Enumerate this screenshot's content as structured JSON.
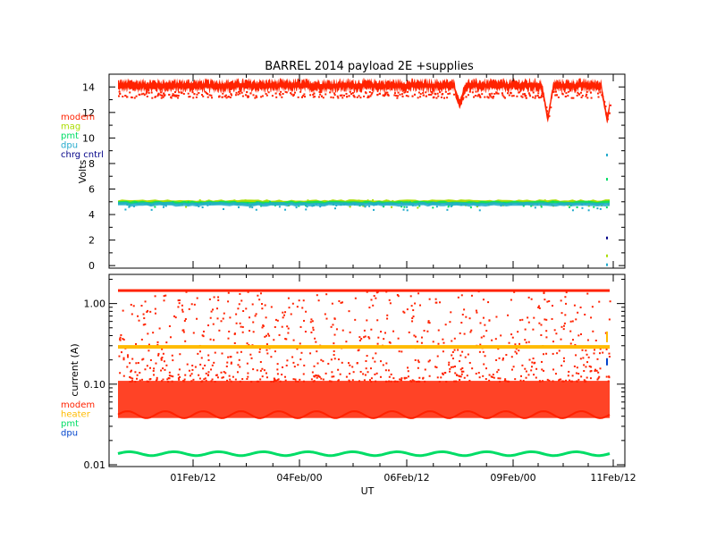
{
  "colors": {
    "modem": "#ff2200",
    "mag": "#aadd00",
    "pmt": "#00dd66",
    "dpu": "#22aacc",
    "chrg_cntrl": "#000088",
    "heater": "#ffbb00",
    "dpu_lower": "#0044cc"
  },
  "chart_data": [
    {
      "type": "scatter",
      "title": "BARREL 2014 payload 2E +supplies",
      "ylabel": "Volts",
      "ylim": [
        -0.2,
        15
      ],
      "yticks": [
        {
          "label": "0",
          "value": 0
        },
        {
          "label": "2",
          "value": 2
        },
        {
          "label": "4",
          "value": 4
        },
        {
          "label": "6",
          "value": 6
        },
        {
          "label": "8",
          "value": 8
        },
        {
          "label": "10",
          "value": 10
        },
        {
          "label": "12",
          "value": 12
        },
        {
          "label": "14",
          "value": 14
        }
      ],
      "legend": [
        "modem",
        "mag",
        "pmt",
        "dpu",
        "chrg cntrl"
      ],
      "legend_position": "left",
      "series": [
        {
          "name": "modem",
          "color_key": "modem",
          "typical_value": 14.1,
          "spread": [
            13.2,
            14.6
          ],
          "dips": [
            {
              "x_frac": 0.695,
              "min": 12.6
            },
            {
              "x_frac": 0.874,
              "min": 11.5
            },
            {
              "x_frac": 0.995,
              "min": 11.4
            }
          ]
        },
        {
          "name": "mag",
          "color_key": "mag",
          "typical_value": 5.0,
          "spread": [
            4.6,
            5.2
          ]
        },
        {
          "name": "pmt",
          "color_key": "pmt",
          "typical_value": 4.9,
          "spread": [
            4.6,
            5.1
          ]
        },
        {
          "name": "dpu",
          "color_key": "dpu",
          "typical_value": 4.8,
          "spread": [
            4.4,
            5.0
          ]
        }
      ],
      "end_points": [
        {
          "series": "dpu",
          "value": 8.7
        },
        {
          "series": "pmt",
          "value": 6.8
        },
        {
          "series": "chrg cntrl",
          "value": 2.2
        },
        {
          "series": "mag",
          "value": 0.8
        },
        {
          "series": "dpu",
          "value": 0.1
        }
      ]
    },
    {
      "type": "scatter",
      "xlabel": "UT",
      "ylabel": "current (A)",
      "yscale": "log",
      "ylim": [
        0.0095,
        2.3
      ],
      "yticks": [
        {
          "label": "0.01",
          "value": 0.01
        },
        {
          "label": "0.10",
          "value": 0.1
        },
        {
          "label": "1.00",
          "value": 1.0
        }
      ],
      "xticks": [
        "01Feb/12",
        "04Feb/00",
        "06Feb/12",
        "09Feb/00",
        "11Feb/12"
      ],
      "legend": [
        "modem",
        "heater",
        "pmt",
        "dpu"
      ],
      "legend_position": "left",
      "series": [
        {
          "name": "modem",
          "color_key": "modem",
          "band": [
            0.038,
            0.11
          ],
          "top_line": 1.45,
          "sparse_range": [
            0.11,
            1.45
          ]
        },
        {
          "name": "heater",
          "color_key": "heater",
          "typical_value": 0.29
        },
        {
          "name": "pmt",
          "color_key": "pmt",
          "typical_value": 0.0135,
          "oscillation": [
            0.013,
            0.0145
          ]
        },
        {
          "name": "dpu",
          "color_key": "dpu_lower",
          "end_value": 0.18
        }
      ]
    }
  ]
}
